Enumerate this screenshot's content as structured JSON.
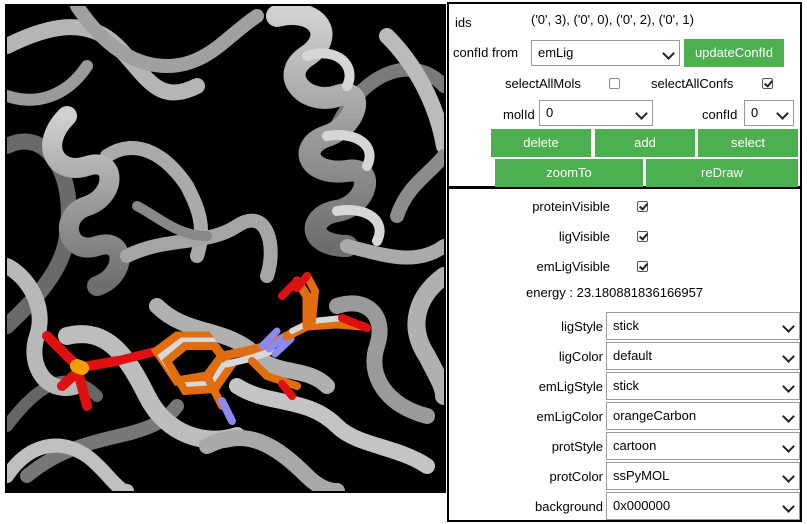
{
  "controls": {
    "ids_label": "ids",
    "ids_value": "('0', 3), ('0', 0), ('0', 2), ('0', 1)",
    "confid_from_label": "confId from",
    "confid_from_value": "emLig",
    "update_button": "updateConfId",
    "select_all_mols_label": "selectAllMols",
    "select_all_mols_checked": false,
    "select_all_confs_label": "selectAllConfs",
    "select_all_confs_checked": true,
    "molid_label": "molId",
    "molid_value": "0",
    "confid_label": "confId",
    "confid_value": "0",
    "buttons": {
      "delete": "delete",
      "add": "add",
      "select": "select",
      "zoom_to": "zoomTo",
      "redraw": "reDraw"
    }
  },
  "style_panel": {
    "protein_visible_label": "proteinVisible",
    "protein_visible_checked": true,
    "lig_visible_label": "ligVisible",
    "lig_visible_checked": true,
    "em_lig_visible_label": "emLigVisible",
    "em_lig_visible_checked": true,
    "energy_text": "energy : 23.180881836166957",
    "rows": [
      {
        "label": "ligStyle",
        "value": "stick"
      },
      {
        "label": "ligColor",
        "value": "default"
      },
      {
        "label": "emLigStyle",
        "value": "stick"
      },
      {
        "label": "emLigColor",
        "value": "orangeCarbon"
      },
      {
        "label": "protStyle",
        "value": "cartoon"
      },
      {
        "label": "protColor",
        "value": "ssPyMOL"
      },
      {
        "label": "background",
        "value": "0x000000"
      }
    ]
  },
  "colors": {
    "accent_button": "#4caf50",
    "viewer_background": "#000000",
    "protein_ribbon": "#a8a8a8",
    "ligand_carbon": "#d8d8d8",
    "em_ligand_carbon": "#e06d10",
    "oxygen": "#e01010",
    "nitrogen": "#8a8af0",
    "phosphorus": "#f0a000"
  }
}
